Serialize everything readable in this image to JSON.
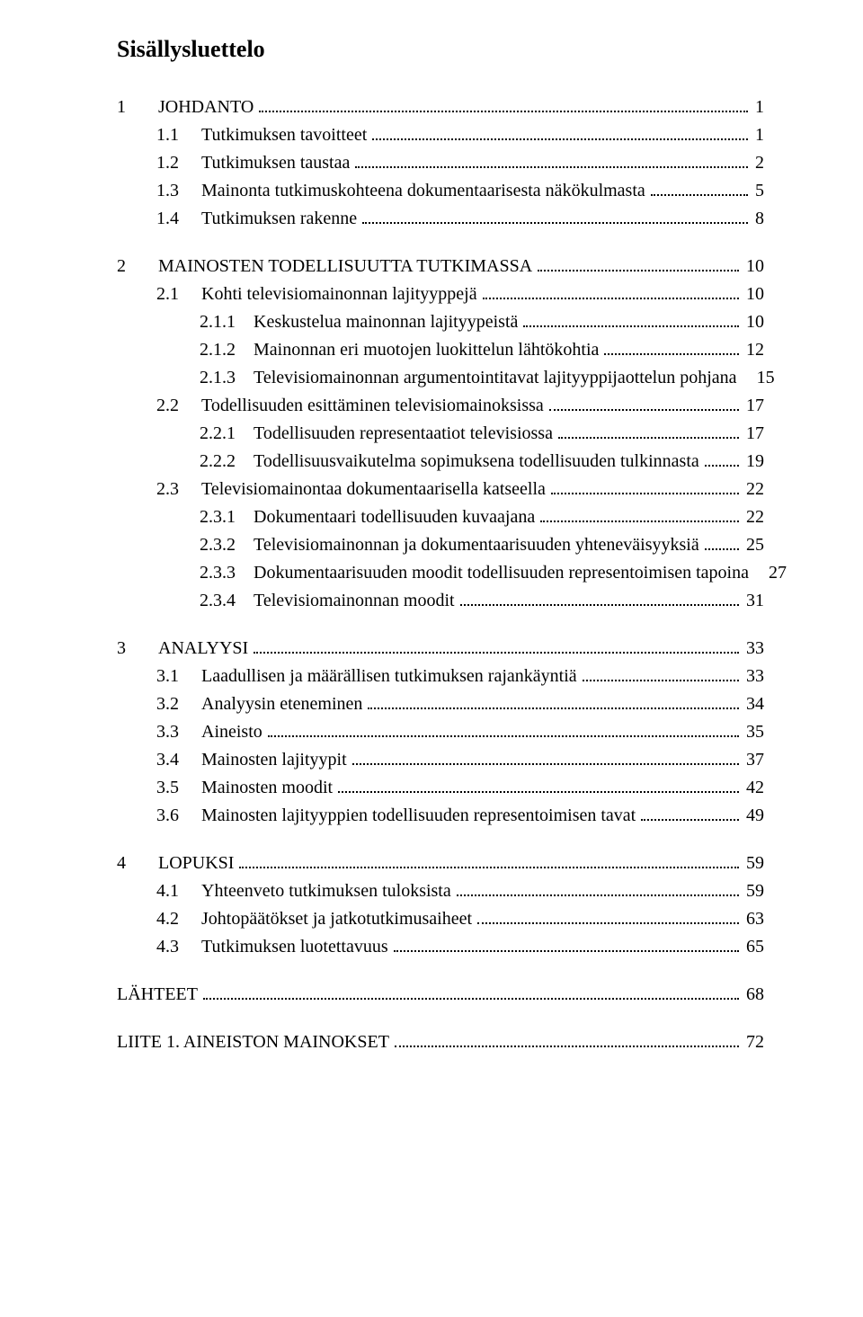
{
  "title": "Sisällysluettelo",
  "entries": [
    {
      "level": 1,
      "label": "1",
      "text": "JOHDANTO",
      "page": "1",
      "gapBefore": true
    },
    {
      "level": 2,
      "label": "1.1",
      "text": "Tutkimuksen tavoitteet",
      "page": "1"
    },
    {
      "level": 2,
      "label": "1.2",
      "text": "Tutkimuksen taustaa",
      "page": "2"
    },
    {
      "level": 2,
      "label": "1.3",
      "text": "Mainonta tutkimuskohteena dokumentaarisesta näkökulmasta",
      "page": "5"
    },
    {
      "level": 2,
      "label": "1.4",
      "text": "Tutkimuksen rakenne",
      "page": "8"
    },
    {
      "level": 1,
      "label": "2",
      "text": "MAINOSTEN TODELLISUUTTA TUTKIMASSA",
      "page": "10",
      "gapBefore": true
    },
    {
      "level": 2,
      "label": "2.1",
      "text": "Kohti televisiomainonnan lajityyppejä",
      "page": "10"
    },
    {
      "level": 3,
      "label": "2.1.1",
      "text": "Keskustelua mainonnan lajityypeistä",
      "page": "10"
    },
    {
      "level": 3,
      "label": "2.1.2",
      "text": "Mainonnan eri muotojen luokittelun lähtökohtia",
      "page": "12"
    },
    {
      "level": 3,
      "label": "2.1.3",
      "text": "Televisiomainonnan argumentointitavat lajityyppijaottelun pohjana",
      "page": "15",
      "nodots": true
    },
    {
      "level": 2,
      "label": "2.2",
      "text": "Todellisuuden esittäminen televisiomainoksissa",
      "page": "17"
    },
    {
      "level": 3,
      "label": "2.2.1",
      "text": "Todellisuuden representaatiot televisiossa",
      "page": "17"
    },
    {
      "level": 3,
      "label": "2.2.2",
      "text": "Todellisuusvaikutelma sopimuksena todellisuuden tulkinnasta",
      "page": "19"
    },
    {
      "level": 2,
      "label": "2.3",
      "text": "Televisiomainontaa dokumentaarisella katseella",
      "page": "22"
    },
    {
      "level": 3,
      "label": "2.3.1",
      "text": "Dokumentaari todellisuuden kuvaajana",
      "page": "22"
    },
    {
      "level": 3,
      "label": "2.3.2",
      "text": "Televisiomainonnan ja dokumentaarisuuden yhteneväisyyksiä",
      "page": "25"
    },
    {
      "level": 3,
      "label": "2.3.3",
      "text": "Dokumentaarisuuden moodit todellisuuden representoimisen tapoina",
      "page": "27",
      "nodots": true
    },
    {
      "level": 3,
      "label": "2.3.4",
      "text": "Televisiomainonnan moodit",
      "page": "31"
    },
    {
      "level": 1,
      "label": "3",
      "text": "ANALYYSI",
      "page": "33",
      "gapBefore": true
    },
    {
      "level": 2,
      "label": "3.1",
      "text": "Laadullisen ja määrällisen tutkimuksen rajankäyntiä",
      "page": "33"
    },
    {
      "level": 2,
      "label": "3.2",
      "text": "Analyysin eteneminen",
      "page": "34"
    },
    {
      "level": 2,
      "label": "3.3",
      "text": "Aineisto",
      "page": "35"
    },
    {
      "level": 2,
      "label": "3.4",
      "text": "Mainosten lajityypit",
      "page": "37"
    },
    {
      "level": 2,
      "label": "3.5",
      "text": "Mainosten moodit",
      "page": "42"
    },
    {
      "level": 2,
      "label": "3.6",
      "text": "Mainosten lajityyppien todellisuuden representoimisen tavat",
      "page": "49"
    },
    {
      "level": 1,
      "label": "4",
      "text": "LOPUKSI",
      "page": "59",
      "gapBefore": true
    },
    {
      "level": 2,
      "label": "4.1",
      "text": "Yhteenveto tutkimuksen tuloksista",
      "page": "59"
    },
    {
      "level": 2,
      "label": "4.2",
      "text": "Johtopäätökset ja jatkotutkimusaiheet",
      "page": "63"
    },
    {
      "level": 2,
      "label": "4.3",
      "text": "Tutkimuksen luotettavuus",
      "page": "65"
    },
    {
      "level": 1,
      "label": "",
      "text": "LÄHTEET",
      "page": "68",
      "gapBefore": true
    },
    {
      "level": 1,
      "label": "",
      "text": "LIITE 1. AINEISTON MAINOKSET",
      "page": "72",
      "gapBefore": true
    }
  ]
}
